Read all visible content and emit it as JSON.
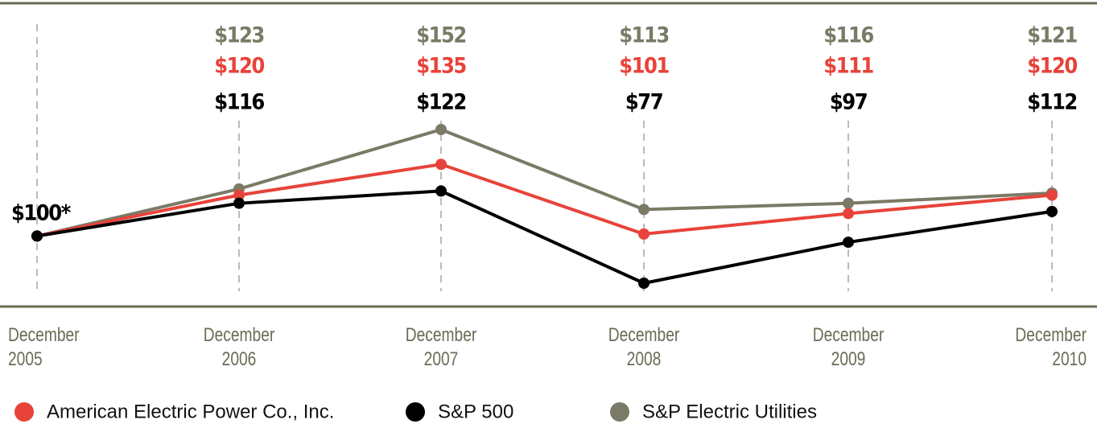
{
  "chart_data": {
    "type": "line",
    "categories": [
      "December\n2005",
      "December\n2006",
      "December\n2007",
      "December\n2008",
      "December\n2009",
      "December\n2010"
    ],
    "series": [
      {
        "name": "American Electric Power Co., Inc.",
        "color": "#e8433a",
        "values": [
          100,
          120,
          135,
          101,
          111,
          120
        ],
        "value_labels": [
          null,
          "$120",
          "$135",
          "$101",
          "$111",
          "$120"
        ]
      },
      {
        "name": "S&P 500",
        "color": "#000000",
        "values": [
          100,
          116,
          122,
          77,
          97,
          112
        ],
        "value_labels": [
          "$100*",
          "$116",
          "$122",
          "$77",
          "$97",
          "$112"
        ]
      },
      {
        "name": "S&P Electric Utilities",
        "color": "#7a7a66",
        "values": [
          100,
          123,
          152,
          113,
          116,
          121
        ],
        "value_labels": [
          null,
          "$123",
          "$152",
          "$113",
          "$116",
          "$121"
        ]
      }
    ]
  }
}
